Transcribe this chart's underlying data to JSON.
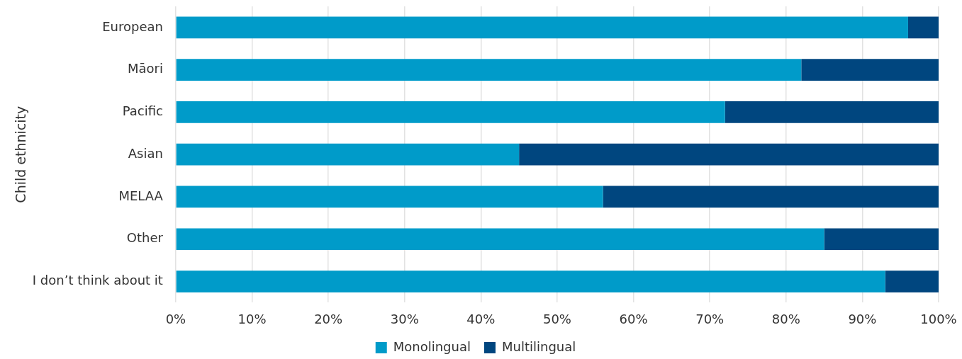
{
  "chart_data": {
    "type": "bar",
    "orientation": "horizontal",
    "stacked": true,
    "ylabel": "Child ethnicity",
    "categories": [
      "European",
      "Māori",
      "Pacific",
      "Asian",
      "MELAA",
      "Other",
      "I don’t think about it"
    ],
    "series": [
      {
        "name": "Monolingual",
        "color": "#009bc9",
        "values": [
          96,
          82,
          72,
          45,
          56,
          85,
          93
        ]
      },
      {
        "name": "Multilingual",
        "color": "#00467f",
        "values": [
          4,
          18,
          28,
          55,
          44,
          15,
          7
        ]
      }
    ],
    "xlim": [
      0,
      100
    ],
    "xticks": [
      {
        "value": 0,
        "label": "0%"
      },
      {
        "value": 10,
        "label": "10%"
      },
      {
        "value": 20,
        "label": "20%"
      },
      {
        "value": 30,
        "label": "30%"
      },
      {
        "value": 40,
        "label": "40%"
      },
      {
        "value": 50,
        "label": "50%"
      },
      {
        "value": 60,
        "label": "60%"
      },
      {
        "value": 70,
        "label": "70%"
      },
      {
        "value": 80,
        "label": "80%"
      },
      {
        "value": 90,
        "label": "90%"
      },
      {
        "value": 100,
        "label": "100%"
      }
    ],
    "grid": "x",
    "legend": "bottom"
  }
}
